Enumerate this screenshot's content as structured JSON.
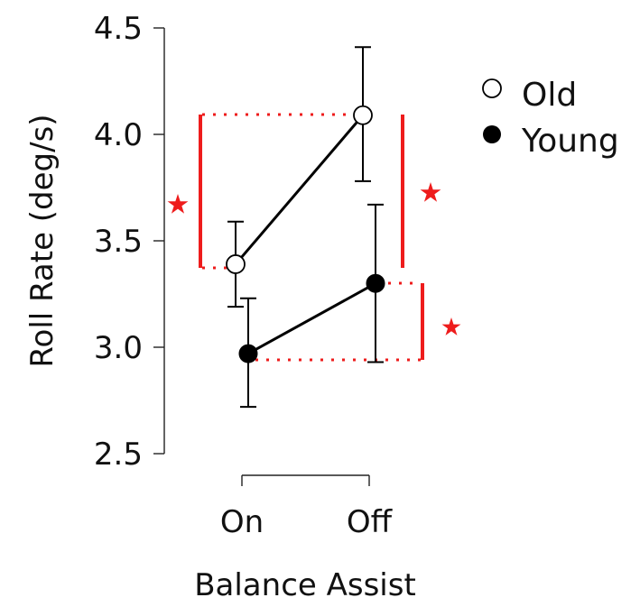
{
  "chart_data": {
    "type": "line",
    "title": "",
    "xlabel": "Balance Assist",
    "ylabel": "Roll Rate (deg/s)",
    "categories": [
      "On",
      "Off"
    ],
    "ylim": [
      2.5,
      4.5
    ],
    "yticks": [
      "2.5",
      "3.0",
      "3.5",
      "4.0",
      "4.5"
    ],
    "grid": false,
    "legend_position": "top-right",
    "series": [
      {
        "name": "Old",
        "marker": "open-circle",
        "values": [
          3.39,
          4.09
        ],
        "error_low": [
          3.19,
          3.78
        ],
        "error_high": [
          3.59,
          4.41
        ]
      },
      {
        "name": "Young",
        "marker": "filled-circle",
        "values": [
          2.97,
          3.3
        ],
        "error_low": [
          2.72,
          2.93
        ],
        "error_high": [
          3.23,
          3.67
        ]
      }
    ],
    "significance": [
      {
        "label": "Old On vs Old Off",
        "marker": "star",
        "side": "left"
      },
      {
        "label": "Old Off vs Young Off",
        "marker": "star",
        "side": "right"
      },
      {
        "label": "Young On vs Young Off",
        "marker": "star",
        "side": "right"
      }
    ],
    "colors": {
      "significance": "#ee1c1c",
      "series_line": "#000000"
    }
  }
}
